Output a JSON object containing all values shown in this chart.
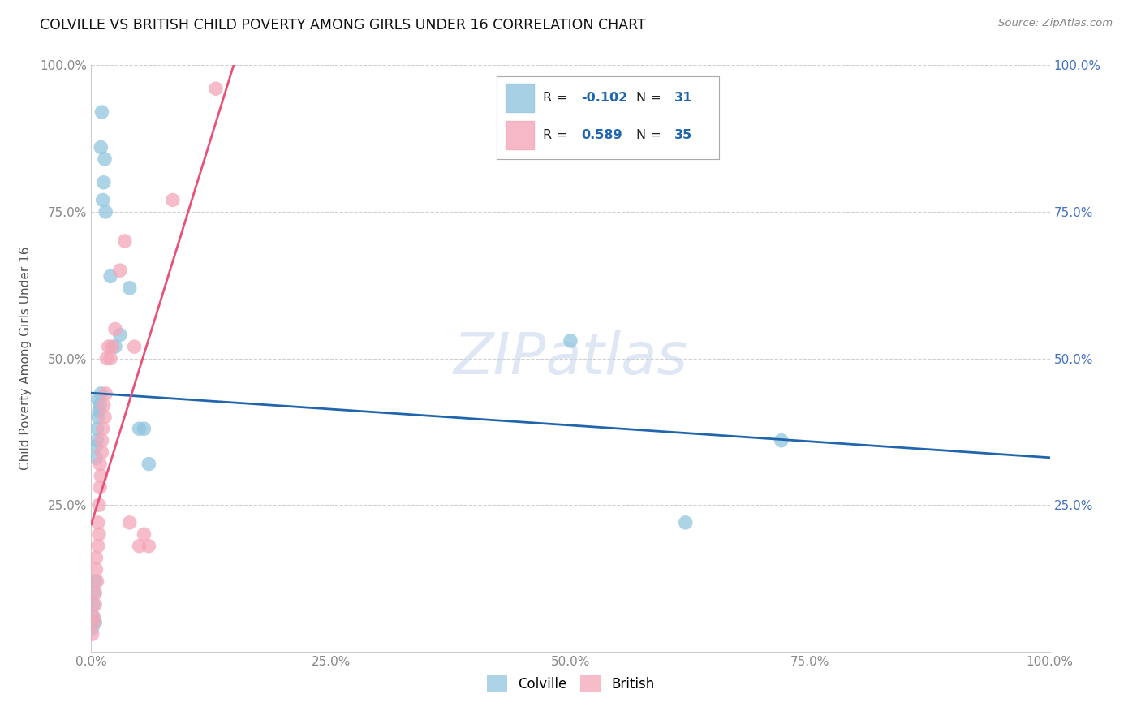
{
  "title": "COLVILLE VS BRITISH CHILD POVERTY AMONG GIRLS UNDER 16 CORRELATION CHART",
  "source": "Source: ZipAtlas.com",
  "ylabel": "Child Poverty Among Girls Under 16",
  "colville_color": "#92c5de",
  "british_color": "#f4a6b8",
  "colville_R": -0.102,
  "colville_N": 31,
  "british_R": 0.589,
  "british_N": 35,
  "colville_x": [
    0.001,
    0.002,
    0.002,
    0.003,
    0.004,
    0.004,
    0.005,
    0.005,
    0.006,
    0.006,
    0.007,
    0.007,
    0.008,
    0.009,
    0.01,
    0.01,
    0.011,
    0.012,
    0.013,
    0.014,
    0.015,
    0.02,
    0.025,
    0.03,
    0.04,
    0.05,
    0.055,
    0.06,
    0.5,
    0.62,
    0.72
  ],
  "colville_y": [
    0.04,
    0.06,
    0.08,
    0.1,
    0.05,
    0.12,
    0.33,
    0.35,
    0.36,
    0.38,
    0.4,
    0.43,
    0.41,
    0.42,
    0.44,
    0.86,
    0.92,
    0.77,
    0.8,
    0.84,
    0.75,
    0.64,
    0.52,
    0.54,
    0.62,
    0.38,
    0.38,
    0.32,
    0.53,
    0.22,
    0.36
  ],
  "british_x": [
    0.001,
    0.002,
    0.003,
    0.004,
    0.004,
    0.005,
    0.005,
    0.006,
    0.007,
    0.007,
    0.008,
    0.008,
    0.009,
    0.009,
    0.01,
    0.011,
    0.011,
    0.012,
    0.013,
    0.014,
    0.015,
    0.016,
    0.018,
    0.02,
    0.022,
    0.025,
    0.03,
    0.035,
    0.04,
    0.045,
    0.05,
    0.055,
    0.06,
    0.085,
    0.13
  ],
  "british_y": [
    0.03,
    0.06,
    0.05,
    0.08,
    0.1,
    0.14,
    0.16,
    0.12,
    0.18,
    0.22,
    0.2,
    0.25,
    0.28,
    0.32,
    0.3,
    0.34,
    0.36,
    0.38,
    0.42,
    0.4,
    0.44,
    0.5,
    0.52,
    0.5,
    0.52,
    0.55,
    0.65,
    0.7,
    0.22,
    0.52,
    0.18,
    0.2,
    0.18,
    0.77,
    0.96
  ],
  "xlim": [
    0.0,
    1.0
  ],
  "ylim": [
    0.0,
    1.0
  ],
  "xticks": [
    0.0,
    0.25,
    0.5,
    0.75,
    1.0
  ],
  "yticks": [
    0.25,
    0.5,
    0.75,
    1.0
  ],
  "xticklabels": [
    "0.0%",
    "25.0%",
    "50.0%",
    "75.0%",
    "100.0%"
  ],
  "left_yticklabels": [
    "25.0%",
    "50.0%",
    "75.0%",
    "100.0%"
  ],
  "right_yticklabels": [
    "25.0%",
    "50.0%",
    "75.0%",
    "100.0%"
  ],
  "watermark_text": "ZIPatlas",
  "background_color": "#ffffff",
  "grid_color": "#d0d0d0",
  "colville_line_color": "#2166ac",
  "british_line_color": "#e8527a",
  "right_tick_color": "#4472c4",
  "legend_border_color": "#aaaaaa"
}
